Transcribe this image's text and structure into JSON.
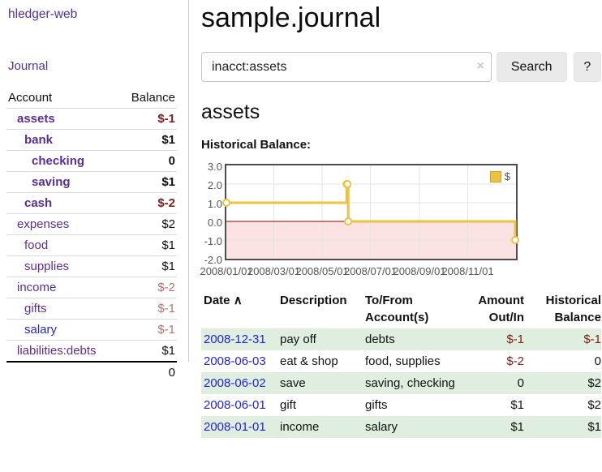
{
  "brand": {
    "label": "hledger-web"
  },
  "sidebar": {
    "nav_journal": "Journal",
    "accounts_table": {
      "headers": {
        "account": "Account",
        "balance": "Balance"
      },
      "rows": [
        {
          "name": "assets",
          "depth": 1,
          "bold": true,
          "balance": "$-1",
          "balance_tone": "neg-strong",
          "link_tone": "purple"
        },
        {
          "name": "bank",
          "depth": 2,
          "bold": true,
          "balance": "$1",
          "balance_tone": "normal",
          "link_tone": "purple"
        },
        {
          "name": "checking",
          "depth": 3,
          "bold": true,
          "balance": "0",
          "balance_tone": "normal",
          "link_tone": "purple"
        },
        {
          "name": "saving",
          "depth": 3,
          "bold": true,
          "balance": "$1",
          "balance_tone": "normal",
          "link_tone": "purple"
        },
        {
          "name": "cash",
          "depth": 2,
          "bold": true,
          "balance": "$-2",
          "balance_tone": "neg-strong",
          "link_tone": "purple"
        },
        {
          "name": "expenses",
          "depth": 1,
          "bold": false,
          "balance": "$2",
          "balance_tone": "normal",
          "link_tone": "purple"
        },
        {
          "name": "food",
          "depth": 2,
          "bold": false,
          "balance": "$1",
          "balance_tone": "normal",
          "link_tone": "purple"
        },
        {
          "name": "supplies",
          "depth": 2,
          "bold": false,
          "balance": "$1",
          "balance_tone": "normal",
          "link_tone": "purple"
        },
        {
          "name": "income",
          "depth": 1,
          "bold": false,
          "balance": "$-2",
          "balance_tone": "neg-soft",
          "link_tone": "purple"
        },
        {
          "name": "gifts",
          "depth": 2,
          "bold": false,
          "balance": "$-1",
          "balance_tone": "neg-soft",
          "link_tone": "purple"
        },
        {
          "name": "salary",
          "depth": 2,
          "bold": false,
          "balance": "$-1",
          "balance_tone": "neg-soft",
          "link_tone": "blue"
        },
        {
          "name": "liabilities:debts",
          "depth": 1,
          "bold": false,
          "balance": "$1",
          "balance_tone": "normal",
          "link_tone": "purple"
        }
      ],
      "total": "0"
    }
  },
  "main": {
    "title": "sample.journal",
    "search": {
      "query": "inacct:assets",
      "clear_label": "×",
      "search_button": "Search",
      "help_button": "?"
    },
    "account_heading": "assets",
    "section_label": "Historical Balance:"
  },
  "chart_data": {
    "type": "line",
    "step": true,
    "title": "Historical Balance",
    "series": [
      {
        "name": "$",
        "points": [
          [
            "2008-01-01",
            1
          ],
          [
            "2008-06-01",
            2
          ],
          [
            "2008-06-02",
            2
          ],
          [
            "2008-06-03",
            0
          ],
          [
            "2008-12-31",
            -1
          ]
        ]
      }
    ],
    "x_domain": [
      "2008-01-01",
      "2009-01-01"
    ],
    "x_ticks": [
      "2008/01/01",
      "2008/03/01",
      "2008/05/01",
      "2008/07/01",
      "2008/09/01",
      "2008/11/01"
    ],
    "y_ticks": [
      "3.0",
      "2.0",
      "1.0",
      "0.0",
      "-1.0",
      "-2.0"
    ],
    "ylim": [
      -2,
      3
    ],
    "grid": true,
    "legend_label": "$",
    "legend_position": "top-right",
    "colors": {
      "series": "#edc240",
      "marker_fill": "#ffffff",
      "negative_fill": "#fbe3e3",
      "zero_line": "#8f0000",
      "gridline": "#e4e4e4"
    }
  },
  "register": {
    "headers": {
      "date": "Date",
      "sort_indicator": "∧",
      "description": "Description",
      "accounts_line1": "To/From",
      "accounts_line2": "Account(s)",
      "amount_line1": "Amount",
      "amount_line2": "Out/In",
      "balance_line1": "Historical",
      "balance_line2": "Balance"
    },
    "rows": [
      {
        "date": "2008-12-31",
        "description": "pay off",
        "accounts": "debts",
        "amount": "$-1",
        "amount_negative": true,
        "balance": "$-1",
        "balance_negative": true
      },
      {
        "date": "2008-06-03",
        "description": "eat & shop",
        "accounts": "food, supplies",
        "amount": "$-2",
        "amount_negative": true,
        "balance": "0",
        "balance_negative": false
      },
      {
        "date": "2008-06-02",
        "description": "save",
        "accounts": "saving, checking",
        "amount": "0",
        "amount_negative": false,
        "balance": "$2",
        "balance_negative": false
      },
      {
        "date": "2008-06-01",
        "description": "gift",
        "accounts": "gifts",
        "amount": "$1",
        "amount_negative": false,
        "balance": "$2",
        "balance_negative": false
      },
      {
        "date": "2008-01-01",
        "description": "income",
        "accounts": "salary",
        "amount": "$1",
        "amount_negative": false,
        "balance": "$1",
        "balance_negative": false
      }
    ]
  }
}
